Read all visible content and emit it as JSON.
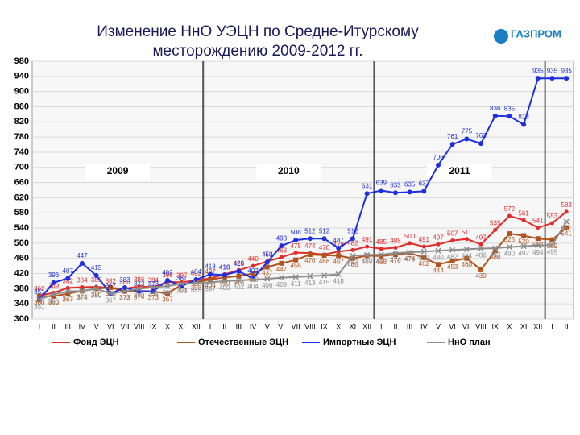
{
  "chart_data": {
    "type": "line",
    "title": "Изменение НнО УЭЦН по Средне-Итурскому месторождению 2009-2012 гг.",
    "logo": "ГАЗПРОМ",
    "annotations": [
      "2009",
      "2010",
      "2011"
    ],
    "categories": [
      "I",
      "II",
      "III",
      "IV",
      "V",
      "VI",
      "VII",
      "VIII",
      "IX",
      "X",
      "XI",
      "XII",
      "I",
      "II",
      "III",
      "IV",
      "V",
      "VI",
      "VII",
      "VIII",
      "IX",
      "X",
      "XI",
      "XII",
      "I",
      "II",
      "III",
      "IV",
      "V",
      "VI",
      "VII",
      "VIII",
      "IX",
      "X",
      "XI",
      "XII",
      "I",
      "II"
    ],
    "series": [
      {
        "name": "Фонд ЭЦН",
        "color": "#e32b2b",
        "values": [
          362,
          369,
          382,
          384,
          385,
          382,
          380,
          386,
          384,
          398,
          397,
          402,
          407,
          418,
          429,
          440,
          452,
          463,
          475,
          474,
          470,
          478,
          482,
          491,
          485,
          488,
          500,
          491,
          497,
          507,
          511,
          497,
          535,
          572,
          561,
          541,
          553,
          583
        ]
      },
      {
        "name": "Отечественные ЭЦН",
        "color": "#b0541e",
        "values": [
          360,
          360,
          367,
          374,
          380,
          383,
          373,
          374,
          373,
          367,
          391,
          398,
          404,
          410,
          413,
          420,
          437,
          447,
          456,
          470,
          468,
          467,
          460,
          467,
          466,
          470,
          474,
          462,
          444,
          453,
          460,
          430,
          480,
          525,
          520,
          512,
          509,
          541
        ]
      },
      {
        "name": "Импортные ЭЦН",
        "color": "#1d2fe0",
        "values": [
          351,
          396,
          407,
          447,
          415,
          367,
          383,
          373,
          373,
          402,
          387,
          404,
          418,
          416,
          426,
          407,
          450,
          493,
          508,
          512,
          512,
          487,
          512,
          631,
          639,
          633,
          635,
          637,
          706,
          761,
          775,
          763,
          836,
          835,
          813,
          935,
          935,
          935
        ]
      },
      {
        "name": "НнО план",
        "color": "#8c8c8c",
        "values": [
          351,
          365,
          373,
          374,
          380,
          367,
          373,
          380,
          384,
          387,
          393,
          395,
          397,
          400,
          402,
          404,
          406,
          409,
          411,
          413,
          415,
          418,
          467,
          469,
          470,
          474,
          476,
          478,
          480,
          482,
          484,
          486,
          487,
          490,
          492,
          494,
          495,
          557
        ]
      }
    ],
    "ylim": [
      300,
      980
    ],
    "yticks": [
      300,
      340,
      380,
      420,
      460,
      500,
      540,
      580,
      620,
      660,
      700,
      740,
      780,
      820,
      860,
      900,
      940,
      980
    ],
    "grid": true
  }
}
